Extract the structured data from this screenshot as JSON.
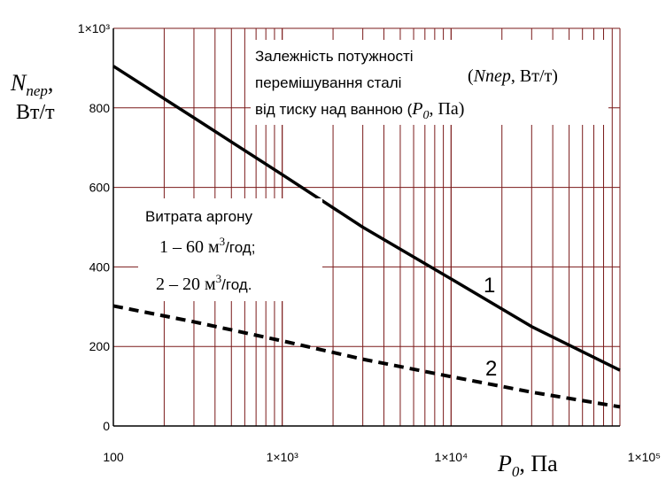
{
  "chart_data": {
    "type": "line",
    "x_scale": "log",
    "xlim": [
      100,
      100000
    ],
    "ylim": [
      0,
      1000
    ],
    "grid": true,
    "x_ticks": [
      100,
      1000,
      10000,
      100000
    ],
    "x_tick_labels": [
      "100",
      "1×10³",
      "1×10⁴",
      "1×10⁵"
    ],
    "y_ticks": [
      0,
      200,
      400,
      600,
      800,
      1000
    ],
    "y_tick_labels": [
      "0",
      "200",
      "400",
      "600",
      "800",
      "1×10³"
    ],
    "ylabel": {
      "main": "N",
      "sub": "пер",
      "comma": ",",
      "unit": "Вт/т"
    },
    "xlabel": {
      "main": "P",
      "sub": "0",
      "unit": ", Па"
    },
    "annotation_title": {
      "line1": "Залежність потужності",
      "line2a": "перемішування сталі",
      "line2b_sym": "Nпер",
      "line2b_unit": ", Вт/т)",
      "line2b_open": "(",
      "line3a": "від тиску над ванною (",
      "line3_sym": "P",
      "line3_sub": "0",
      "line3_unit": ", Па)"
    },
    "legend_box": {
      "title": "Витрата аргону",
      "item1_prefix": "1 – 60 м",
      "item1_sup": "3",
      "item1_suffix": "/год;",
      "item2_prefix": "2 – 20 м",
      "item2_sup": "3",
      "item2_suffix": "/год."
    },
    "series": [
      {
        "label": "1",
        "style": "solid",
        "color": "#000000",
        "x": [
          100,
          300,
          1000,
          3000,
          10000,
          30000,
          100000
        ],
        "y": [
          905,
          775,
          632,
          500,
          370,
          250,
          140
        ]
      },
      {
        "label": "2",
        "style": "dashed",
        "color": "#000000",
        "x": [
          100,
          300,
          1000,
          3000,
          10000,
          30000,
          100000
        ],
        "y": [
          302,
          262,
          214,
          168,
          124,
          85,
          48
        ]
      }
    ],
    "grid_color": "#7a1a1a",
    "axis_color": "#000000"
  }
}
